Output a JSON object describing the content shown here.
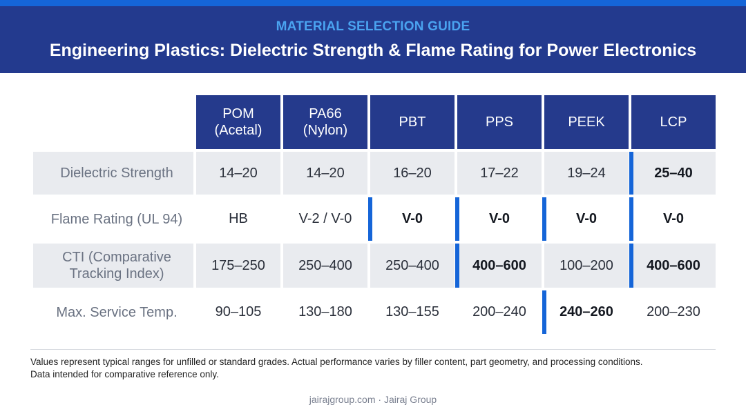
{
  "header": {
    "eyebrow": "MATERIAL SELECTION GUIDE",
    "title": "Engineering Plastics: Dielectric Strength & Flame Rating for Power Electronics"
  },
  "table": {
    "columns": [
      {
        "line1": "POM",
        "line2": "(Acetal)"
      },
      {
        "line1": "PA66",
        "line2": "(Nylon)"
      },
      {
        "line1": "PBT",
        "line2": ""
      },
      {
        "line1": "PPS",
        "line2": ""
      },
      {
        "line1": "PEEK",
        "line2": ""
      },
      {
        "line1": "LCP",
        "line2": ""
      }
    ],
    "rows": [
      {
        "label_line1": "Dielectric Strength",
        "label_line2": "",
        "cells": [
          {
            "value": "14–20",
            "highlight": false
          },
          {
            "value": "14–20",
            "highlight": false
          },
          {
            "value": "16–20",
            "highlight": false
          },
          {
            "value": "17–22",
            "highlight": false
          },
          {
            "value": "19–24",
            "highlight": false
          },
          {
            "value": "25–40",
            "highlight": true
          }
        ]
      },
      {
        "label_line1": "Flame Rating (UL 94)",
        "label_line2": "",
        "cells": [
          {
            "value": "HB",
            "highlight": false
          },
          {
            "value": "V-2 / V-0",
            "highlight": false
          },
          {
            "value": "V-0",
            "highlight": true
          },
          {
            "value": "V-0",
            "highlight": true
          },
          {
            "value": "V-0",
            "highlight": true
          },
          {
            "value": "V-0",
            "highlight": true
          }
        ]
      },
      {
        "label_line1": "CTI (Comparative",
        "label_line2": "Tracking Index)",
        "cells": [
          {
            "value": "175–250",
            "highlight": false
          },
          {
            "value": "250–400",
            "highlight": false
          },
          {
            "value": "250–400",
            "highlight": false
          },
          {
            "value": "400–600",
            "highlight": true
          },
          {
            "value": "100–200",
            "highlight": false
          },
          {
            "value": "400–600",
            "highlight": true
          }
        ]
      },
      {
        "label_line1": "Max. Service Temp.",
        "label_line2": "",
        "cells": [
          {
            "value": "90–105",
            "highlight": false
          },
          {
            "value": "130–180",
            "highlight": false
          },
          {
            "value": "130–155",
            "highlight": false
          },
          {
            "value": "200–240",
            "highlight": false
          },
          {
            "value": "240–260",
            "highlight": true
          },
          {
            "value": "200–230",
            "highlight": false
          }
        ]
      }
    ]
  },
  "notes": {
    "line1": "Values represent typical ranges for unfilled or standard grades. Actual performance varies by filler content, part geometry, and processing conditions.",
    "line2": "Data intended for comparative reference only."
  },
  "footer": {
    "site": "jairajgroup.com",
    "separator": "·",
    "brand": "Jairaj Group"
  },
  "colors": {
    "header_bg": "#233a8e",
    "accent": "#1565d8",
    "eyebrow": "#4aa3f0",
    "column_header_bg": "#253a8c",
    "band_row_bg": "#e9ebef"
  }
}
